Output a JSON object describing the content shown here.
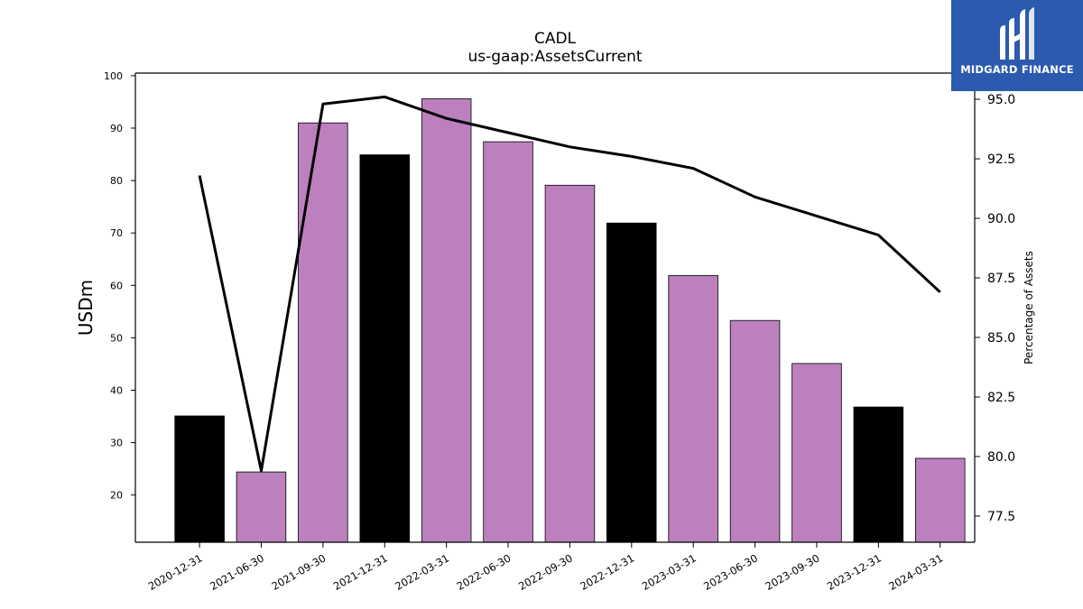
{
  "chart_data": {
    "type": "bar",
    "title": "CADL",
    "subtitle": "us-gaap:AssetsCurrent",
    "ylabel": "USDm",
    "y2label": "Percentage of Assets",
    "categories": [
      "2020-12-31",
      "2021-06-30",
      "2021-09-30",
      "2021-12-31",
      "2022-03-31",
      "2022-06-30",
      "2022-09-30",
      "2022-12-31",
      "2023-03-31",
      "2023-06-30",
      "2023-09-30",
      "2023-12-31",
      "2024-03-31"
    ],
    "bar_values": [
      35.1,
      24.4,
      91.0,
      84.9,
      95.6,
      87.4,
      79.1,
      71.9,
      61.9,
      53.3,
      45.1,
      36.8,
      27.0
    ],
    "bar_colors": [
      "#000000",
      "#bb80bd",
      "#bb80bd",
      "#000000",
      "#bb80bd",
      "#bb80bd",
      "#bb80bd",
      "#000000",
      "#bb80bd",
      "#bb80bd",
      "#bb80bd",
      "#000000",
      "#bb80bd"
    ],
    "line_values": [
      91.8,
      79.4,
      94.8,
      95.1,
      94.2,
      93.6,
      93.0,
      92.6,
      92.1,
      90.9,
      90.1,
      89.3,
      86.9
    ],
    "line_color": "#000000",
    "ylim": [
      11,
      100.5
    ],
    "y2lim": [
      76.4,
      96.1
    ],
    "yticks": [
      20,
      30,
      40,
      50,
      60,
      70,
      80,
      90,
      100
    ],
    "y2ticks": [
      "77.5",
      "80.0",
      "82.5",
      "85.0",
      "87.5",
      "90.0",
      "92.5",
      "95.0"
    ],
    "grid": false
  },
  "logo": {
    "text": "MIDGARD FINANCE",
    "background": "#2b5aae"
  }
}
